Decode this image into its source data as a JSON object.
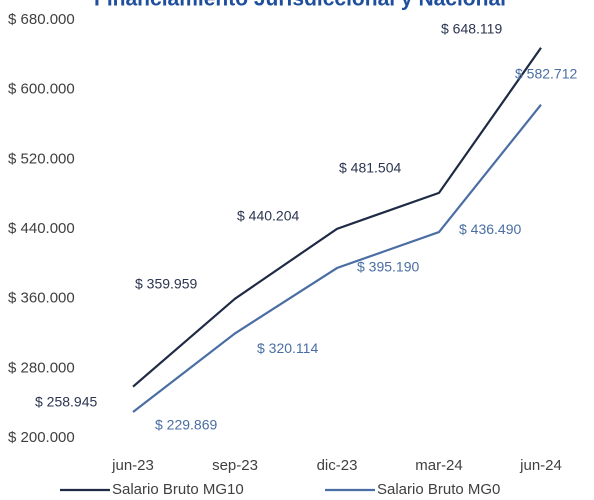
{
  "chart_data": {
    "type": "line",
    "title": "Financiamiento Jurisdiccional y Nacional",
    "categories": [
      "jun-23",
      "sep-23",
      "dic-23",
      "mar-24",
      "jun-24"
    ],
    "series": [
      {
        "name": "Salario Bruto MG10",
        "color": "#1f2b45",
        "values": [
          258945,
          359959,
          440204,
          481504,
          648119
        ],
        "value_labels": [
          "$ 258.945",
          "$ 359.959",
          "$ 440.204",
          "$ 481.504",
          "$ 648.119"
        ]
      },
      {
        "name": "Salario Bruto MG0",
        "color": "#4a6ea3",
        "values": [
          229869,
          320114,
          395190,
          436490,
          582712
        ],
        "value_labels": [
          "$ 229.869",
          "$ 320.114",
          "$ 395.190",
          "$ 436.490",
          "$ 582.712"
        ]
      }
    ],
    "ylim": [
      200000,
      680000
    ],
    "yticks": [
      {
        "value": 200000,
        "label": "$ 200.000"
      },
      {
        "value": 280000,
        "label": "$ 280.000"
      },
      {
        "value": 360000,
        "label": "$ 360.000"
      },
      {
        "value": 440000,
        "label": "$ 440.000"
      },
      {
        "value": 520000,
        "label": "$ 520.000"
      },
      {
        "value": 600000,
        "label": "$ 600.000"
      },
      {
        "value": 680000,
        "label": "$ 680.000"
      }
    ],
    "grid": false,
    "legend": "bottom"
  }
}
